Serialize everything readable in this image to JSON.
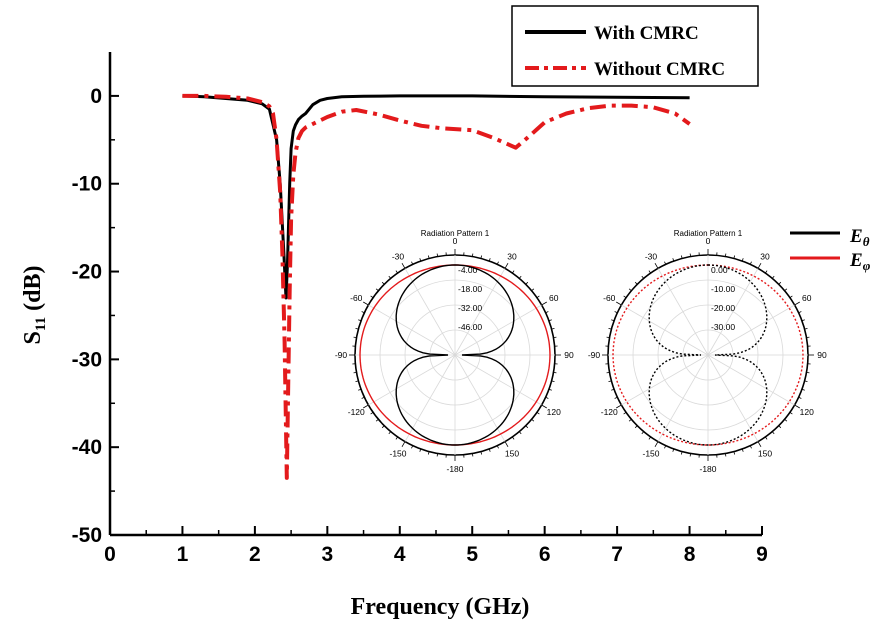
{
  "chart_data": [
    {
      "type": "line",
      "xlabel": "Frequency  (GHz)",
      "ylabel_main": "S",
      "ylabel_sub": "11",
      "ylabel_unit": " (dB)",
      "xlim": [
        0,
        9
      ],
      "ylim": [
        -50,
        5
      ],
      "x_ticks": [
        0,
        1,
        2,
        3,
        4,
        5,
        6,
        7,
        8,
        9
      ],
      "y_ticks": [
        0,
        -10,
        -20,
        -30,
        -40,
        -50
      ],
      "legend": {
        "placement": "top-right"
      },
      "series": [
        {
          "name": "With CMRC",
          "color": "#000000",
          "style": "solid",
          "x": [
            1.0,
            1.3,
            1.6,
            1.9,
            2.1,
            2.2,
            2.3,
            2.35,
            2.4,
            2.43,
            2.45,
            2.48,
            2.5,
            2.53,
            2.56,
            2.6,
            2.65,
            2.7,
            2.8,
            2.9,
            3.0,
            3.2,
            3.5,
            4.0,
            5.0,
            6.0,
            7.0,
            8.0
          ],
          "y": [
            0.0,
            -0.1,
            -0.3,
            -0.5,
            -0.9,
            -1.5,
            -5.0,
            -10.0,
            -18.0,
            -23.0,
            -19.0,
            -10.0,
            -6.0,
            -4.0,
            -3.3,
            -2.7,
            -2.3,
            -2.0,
            -1.0,
            -0.5,
            -0.3,
            -0.1,
            -0.05,
            0.0,
            0.0,
            -0.1,
            -0.15,
            -0.2
          ]
        },
        {
          "name": "Without CMRC",
          "color": "#e31a1c",
          "style": "dashdot",
          "x": [
            1.0,
            1.3,
            1.6,
            1.9,
            2.1,
            2.2,
            2.25,
            2.3,
            2.35,
            2.38,
            2.41,
            2.44,
            2.46,
            2.48,
            2.5,
            2.53,
            2.56,
            2.6,
            2.65,
            2.7,
            2.8,
            3.0,
            3.2,
            3.4,
            3.7,
            4.0,
            4.3,
            4.6,
            5.0,
            5.3,
            5.6,
            5.8,
            6.0,
            6.3,
            6.6,
            6.9,
            7.2,
            7.5,
            7.8,
            8.0
          ],
          "y": [
            0.0,
            0.0,
            -0.1,
            -0.3,
            -0.7,
            -1.2,
            -2.0,
            -5.0,
            -11.0,
            -18.0,
            -28.0,
            -43.5,
            -33.0,
            -22.0,
            -14.0,
            -9.0,
            -6.5,
            -4.8,
            -4.0,
            -3.6,
            -3.2,
            -2.4,
            -1.8,
            -1.6,
            -2.1,
            -2.8,
            -3.4,
            -3.7,
            -3.9,
            -4.8,
            -5.9,
            -4.5,
            -3.0,
            -2.0,
            -1.4,
            -1.1,
            -1.1,
            -1.3,
            -2.0,
            -3.2
          ]
        }
      ]
    },
    {
      "type": "polar",
      "title": "Radiation Pattern 1",
      "angle_labels": [
        "0",
        "30",
        "60",
        "90",
        "120",
        "150",
        "-180",
        "-150",
        "-120",
        "-90",
        "-60",
        "-30"
      ],
      "radial_labels": [
        "-4.00",
        "-18.00",
        "-32.00",
        "-46.00"
      ],
      "series": [
        {
          "name": "E_theta",
          "color": "#000000",
          "style": "solid",
          "pattern": "figure-eight"
        },
        {
          "name": "E_phi",
          "color": "#e31a1c",
          "style": "solid",
          "pattern": "near-circle"
        }
      ]
    },
    {
      "type": "polar",
      "title": "Radiation Pattern 1",
      "angle_labels": [
        "0",
        "30",
        "60",
        "90",
        "120",
        "150",
        "-180",
        "-150",
        "-120",
        "-90",
        "-60",
        "-30"
      ],
      "radial_labels": [
        "0.00",
        "-10.00",
        "-20.00",
        "-30.00"
      ],
      "series": [
        {
          "name": "E_theta",
          "color": "#000000",
          "style": "dotted",
          "pattern": "figure-eight"
        },
        {
          "name": "E_phi",
          "color": "#e31a1c",
          "style": "dotted",
          "pattern": "near-circle"
        }
      ]
    }
  ],
  "inset_legend": [
    {
      "base": "E",
      "sub": "θ",
      "color": "#000000"
    },
    {
      "base": "E",
      "sub": "φ",
      "color": "#e31a1c"
    }
  ]
}
